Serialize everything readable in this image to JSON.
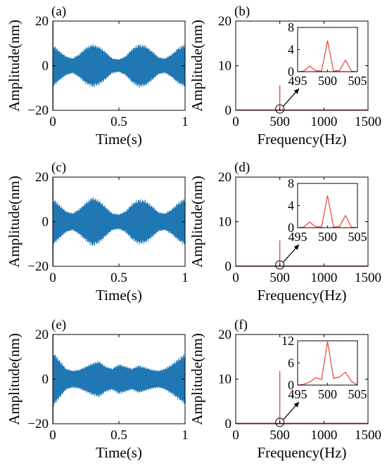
{
  "colors": {
    "time_signal": "#1f77b4",
    "spectrum": "#e8322d",
    "axes": "#000000"
  },
  "chart_data": [
    {
      "panel": "(a)",
      "type": "line",
      "xlabel": "Time(s)",
      "ylabel": "Amplitude(nm)",
      "xlim": [
        0,
        1
      ],
      "ylim": [
        -20,
        20
      ],
      "xticks": [
        0,
        0.5,
        1
      ],
      "xticklabels": [
        "0",
        "0.5",
        "1"
      ],
      "yticks": [
        -20,
        0,
        20
      ],
      "yticklabels": [
        "−20",
        "0",
        "20"
      ],
      "envelope": {
        "t": [
          0,
          0.05,
          0.1,
          0.15,
          0.2,
          0.25,
          0.3,
          0.35,
          0.4,
          0.45,
          0.5,
          0.55,
          0.6,
          0.65,
          0.7,
          0.75,
          0.8,
          0.85,
          0.9,
          0.95,
          1
        ],
        "amp": [
          10,
          7,
          4.5,
          3.5,
          5.5,
          8.5,
          10,
          9,
          6.5,
          3.5,
          3,
          4.5,
          8,
          10,
          9.5,
          7,
          4,
          3.5,
          5.5,
          8.5,
          10
        ]
      }
    },
    {
      "panel": "(b)",
      "type": "line",
      "xlabel": "Frequency(Hz)",
      "ylabel": "Amplitude(nm)",
      "xlim": [
        0,
        1500
      ],
      "ylim": [
        0,
        20
      ],
      "xticks": [
        0,
        500,
        1000,
        1500
      ],
      "xticklabels": [
        "0",
        "500",
        "1000",
        "1500"
      ],
      "yticks": [
        0,
        10,
        20
      ],
      "yticklabels": [
        "0",
        "10",
        "20"
      ],
      "peak": {
        "x": 500,
        "y": 5.6
      },
      "inset": {
        "xlim": [
          495,
          505
        ],
        "ylim": [
          0,
          8
        ],
        "xticks": [
          495,
          500,
          505
        ],
        "xticklabels": [
          "495",
          "500",
          "505"
        ],
        "yticks": [
          0,
          4,
          8
        ],
        "yticklabels": [
          "0",
          "4",
          "8"
        ],
        "x": [
          495,
          496,
          497,
          498,
          499,
          500,
          501,
          502,
          503,
          504,
          505
        ],
        "y": [
          0,
          0.1,
          1.0,
          0.2,
          0.1,
          5.6,
          0.1,
          0.2,
          2.1,
          0.1,
          0
        ]
      }
    },
    {
      "panel": "(c)",
      "type": "line",
      "xlabel": "Time(s)",
      "ylabel": "Amplitude(nm)",
      "xlim": [
        0,
        1
      ],
      "ylim": [
        -20,
        20
      ],
      "xticks": [
        0,
        0.5,
        1
      ],
      "xticklabels": [
        "0",
        "0.5",
        "1"
      ],
      "yticks": [
        -20,
        0,
        20
      ],
      "yticklabels": [
        "−20",
        "0",
        "20"
      ],
      "envelope": {
        "t": [
          0,
          0.05,
          0.1,
          0.15,
          0.2,
          0.25,
          0.3,
          0.35,
          0.4,
          0.45,
          0.5,
          0.55,
          0.6,
          0.65,
          0.7,
          0.75,
          0.8,
          0.85,
          0.9,
          0.95,
          1
        ],
        "amp": [
          11,
          8,
          5,
          4,
          6,
          9,
          11.5,
          10,
          7,
          4,
          3.5,
          5,
          8.5,
          10.5,
          10,
          7.5,
          4.5,
          4,
          6,
          9,
          11
        ]
      }
    },
    {
      "panel": "(d)",
      "type": "line",
      "xlabel": "Frequency(Hz)",
      "ylabel": "Amplitude(nm)",
      "xlim": [
        0,
        1500
      ],
      "ylim": [
        0,
        20
      ],
      "xticks": [
        0,
        500,
        1000,
        1500
      ],
      "xticklabels": [
        "0",
        "500",
        "1000",
        "1500"
      ],
      "yticks": [
        0,
        10,
        20
      ],
      "yticklabels": [
        "0",
        "10",
        "20"
      ],
      "peak": {
        "x": 500,
        "y": 5.8
      },
      "inset": {
        "xlim": [
          495,
          505
        ],
        "ylim": [
          0,
          8
        ],
        "xticks": [
          495,
          500,
          505
        ],
        "xticklabels": [
          "495",
          "500",
          "505"
        ],
        "yticks": [
          0,
          4,
          8
        ],
        "yticklabels": [
          "0",
          "4",
          "8"
        ],
        "x": [
          495,
          496,
          497,
          498,
          499,
          500,
          501,
          502,
          503,
          504,
          505
        ],
        "y": [
          0,
          0.1,
          1.0,
          0.2,
          0.1,
          5.8,
          0.1,
          0.2,
          2.2,
          0.1,
          0
        ]
      }
    },
    {
      "panel": "(e)",
      "type": "line",
      "xlabel": "Time(s)",
      "ylabel": "Amplitude(nm)",
      "xlim": [
        0,
        1
      ],
      "ylim": [
        -20,
        20
      ],
      "xticks": [
        0,
        0.5,
        1
      ],
      "xticklabels": [
        "0",
        "0.5",
        "1"
      ],
      "yticks": [
        -20,
        0,
        20
      ],
      "yticklabels": [
        "−20",
        "0",
        "20"
      ],
      "envelope": {
        "t": [
          0,
          0.05,
          0.1,
          0.15,
          0.2,
          0.25,
          0.3,
          0.35,
          0.4,
          0.45,
          0.5,
          0.55,
          0.6,
          0.65,
          0.7,
          0.75,
          0.8,
          0.85,
          0.9,
          0.95,
          1
        ],
        "amp": [
          13,
          9,
          5,
          4,
          4.5,
          6,
          7.5,
          8.5,
          6,
          5,
          7,
          6,
          5,
          6.5,
          5.5,
          4.5,
          4,
          5,
          7,
          9.5,
          12
        ]
      }
    },
    {
      "panel": "(f)",
      "type": "line",
      "xlabel": "Frequency(Hz)",
      "ylabel": "Amplitude(nm)",
      "xlim": [
        0,
        1500
      ],
      "ylim": [
        0,
        20
      ],
      "xticks": [
        0,
        500,
        1000,
        1500
      ],
      "xticklabels": [
        "0",
        "500",
        "1000",
        "1500"
      ],
      "yticks": [
        0,
        10,
        20
      ],
      "yticklabels": [
        "0",
        "10",
        "20"
      ],
      "peak": {
        "x": 500,
        "y": 11.8
      },
      "inset": {
        "xlim": [
          495,
          505
        ],
        "ylim": [
          0,
          12
        ],
        "xticks": [
          495,
          500,
          505
        ],
        "xticklabels": [
          "495",
          "500",
          "505"
        ],
        "yticks": [
          0,
          6,
          12
        ],
        "yticklabels": [
          "0",
          "6",
          "12"
        ],
        "x": [
          495,
          496,
          497,
          498,
          499,
          500,
          501,
          502,
          503,
          504,
          505
        ],
        "y": [
          0,
          0.2,
          0.8,
          2.0,
          1.5,
          11.8,
          1.8,
          2.2,
          3.5,
          1.0,
          0
        ]
      }
    }
  ]
}
